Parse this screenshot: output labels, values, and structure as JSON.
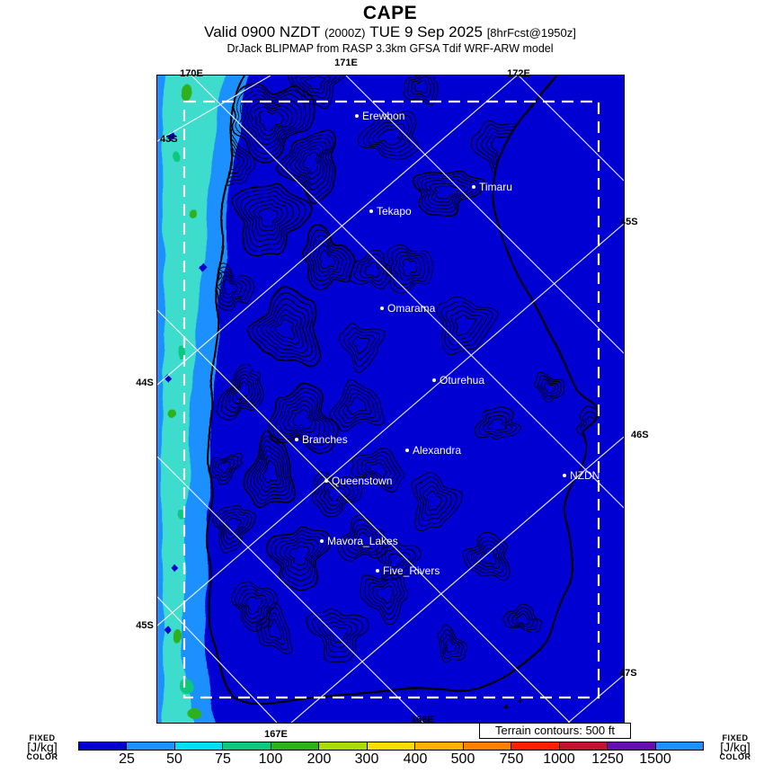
{
  "header": {
    "title": "CAPE",
    "valid_prefix": "Valid 0900 NZDT",
    "valid_zulu": "(2000Z)",
    "valid_date": "TUE 9 Sep 2025",
    "valid_fcst": "[8hrFcst@1950z]",
    "model_line": "DrJack BLIPMAP from RASP 3.3km GFSA Tdif WRF-ARW model"
  },
  "map": {
    "grid_labels": [
      "170E",
      "171E",
      "172E",
      "43S",
      "44S",
      "45S",
      "45S",
      "46S",
      "47S",
      "168E",
      "167E"
    ],
    "places": [
      "Erewhon",
      "Timaru",
      "Tekapo",
      "Omarama",
      "Oturehua",
      "Branches",
      "Alexandra",
      "Queenstown",
      "NZDN",
      "Mavora_Lakes",
      "Five_Rivers"
    ],
    "terrain_note": "Terrain contours: 500 ft"
  },
  "colorbar": {
    "legend_top": "FIXED",
    "legend_unit": "[J/kg]",
    "legend_bottom": "COLOR",
    "tick_labels": [
      "25",
      "50",
      "75",
      "100",
      "200",
      "300",
      "400",
      "500",
      "750",
      "1000",
      "1250",
      "1500"
    ],
    "colors": [
      "#0000D2",
      "#1E90FF",
      "#00E0F0",
      "#0DC87D",
      "#2FB11E",
      "#A9DC06",
      "#FFDD00",
      "#FFB000",
      "#FF8000",
      "#FF1E00",
      "#C41230",
      "#6A0DAD",
      "#1E90FF"
    ]
  },
  "colors": {
    "field": "#0000D2",
    "sea_band_outer": "#1E90FF",
    "sea_band_inner": "#3CDCCC",
    "patch_green_a": "#0DC87D",
    "patch_green_b": "#2FB11E",
    "grid_line": "#FFFFFF"
  }
}
